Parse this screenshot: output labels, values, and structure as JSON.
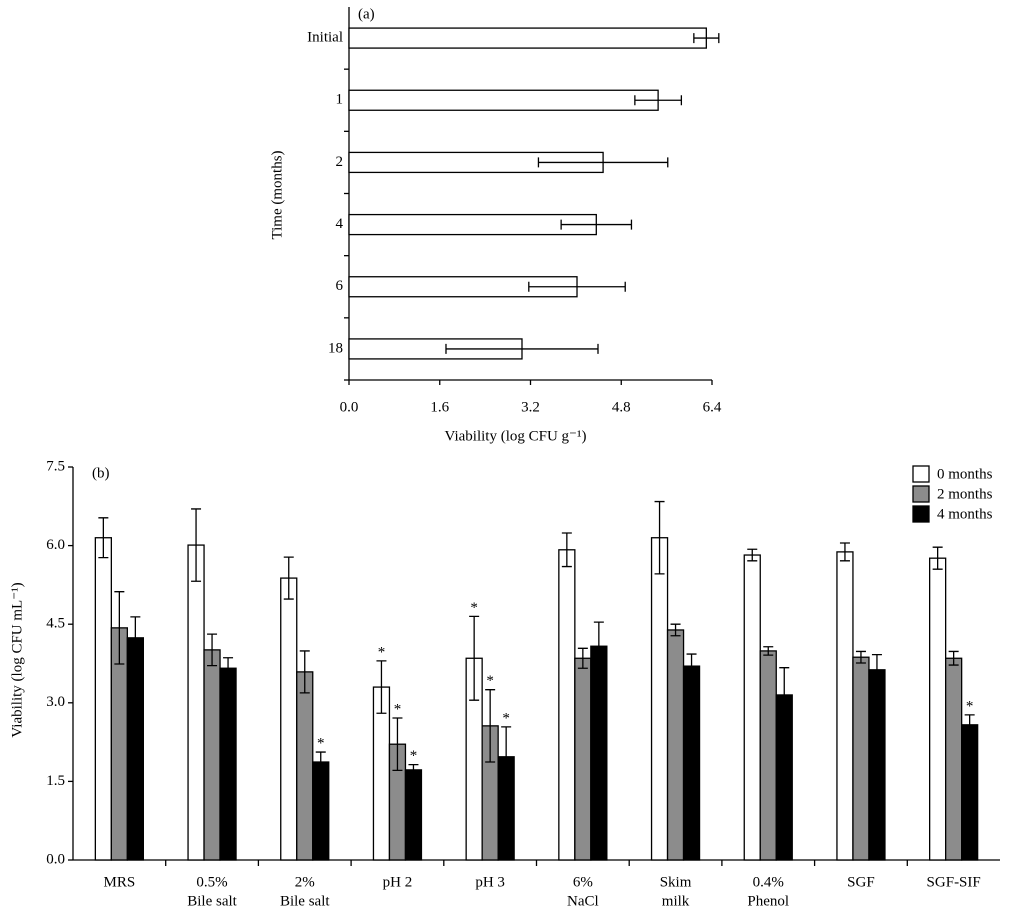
{
  "chart_data": [
    {
      "type": "hbar",
      "title": "(a)",
      "xlabel": "Viability (log CFU g⁻¹)",
      "ylabel": "Time (months)",
      "categories": [
        "Initial",
        "1",
        "2",
        "4",
        "6",
        "18"
      ],
      "values": [
        6.3,
        5.45,
        4.48,
        4.36,
        4.02,
        3.05
      ],
      "errors": [
        0.22,
        0.41,
        1.14,
        0.62,
        0.85,
        1.34
      ],
      "color": "#ffffff",
      "xlim": [
        0,
        6.4
      ],
      "xticks": [
        {
          "value": 0,
          "label": "0.0"
        },
        1.6,
        3.2,
        4.8,
        6.4
      ]
    },
    {
      "type": "grouped-bar",
      "title": "(b)",
      "ylabel": "Viability (log CFU mL⁻¹)",
      "categories": [
        [
          "MRS"
        ],
        [
          "0.5%",
          "Bile salt"
        ],
        [
          "2%",
          "Bile salt"
        ],
        [
          "pH 2"
        ],
        [
          "pH 3"
        ],
        [
          "6%",
          "NaCl"
        ],
        [
          "Skim",
          "milk"
        ],
        [
          "0.4%",
          "Phenol"
        ],
        [
          "SGF"
        ],
        [
          "SGF-SIF"
        ]
      ],
      "series": [
        {
          "name": "0 months",
          "color": "#ffffff",
          "values": [
            6.15,
            6.01,
            5.38,
            3.3,
            3.85,
            5.92,
            6.15,
            5.82,
            5.88,
            5.76
          ],
          "errors": [
            0.38,
            0.69,
            0.4,
            0.5,
            0.8,
            0.32,
            0.69,
            0.11,
            0.17,
            0.21
          ],
          "annotations": [
            null,
            null,
            null,
            "*",
            "*",
            null,
            null,
            null,
            null,
            null
          ]
        },
        {
          "name": "2 months",
          "color": "#8c8c8c",
          "values": [
            4.43,
            4.01,
            3.59,
            2.21,
            2.56,
            3.85,
            4.39,
            3.99,
            3.87,
            3.85
          ],
          "errors": [
            0.69,
            0.3,
            0.4,
            0.5,
            0.69,
            0.19,
            0.11,
            0.08,
            0.11,
            0.13
          ],
          "annotations": [
            null,
            null,
            null,
            "*",
            "*",
            null,
            null,
            null,
            null,
            null
          ]
        },
        {
          "name": "4 months",
          "color": "#000000",
          "values": [
            4.24,
            3.66,
            1.87,
            1.72,
            1.97,
            4.08,
            3.7,
            3.15,
            3.63,
            2.58
          ],
          "errors": [
            0.4,
            0.2,
            0.19,
            0.1,
            0.57,
            0.46,
            0.23,
            0.52,
            0.29,
            0.19
          ],
          "annotations": [
            null,
            null,
            "*",
            "*",
            "*",
            null,
            null,
            null,
            null,
            "*"
          ]
        }
      ],
      "ylim": [
        0,
        7.5
      ],
      "yticks": [
        {
          "value": 0,
          "label": "0.0"
        },
        1.5,
        {
          "value": 3,
          "label": "3.0"
        },
        4.5,
        {
          "value": 6,
          "label": "6.0"
        },
        7.5
      ],
      "legend": "top-right"
    }
  ]
}
